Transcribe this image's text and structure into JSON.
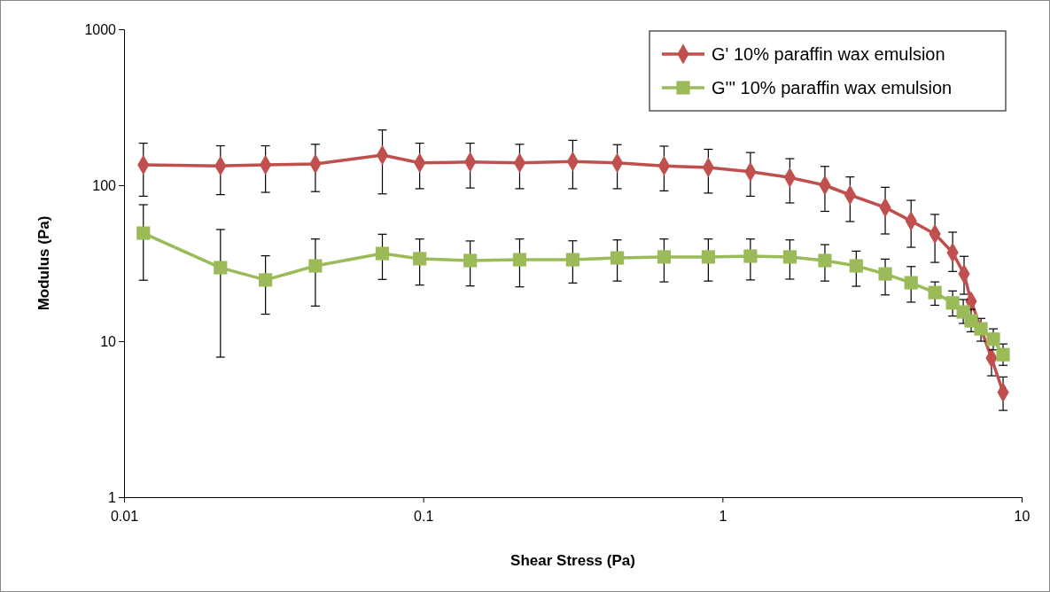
{
  "chart_data": {
    "type": "line",
    "xlabel": "Shear Stress (Pa)",
    "ylabel": "Modulus (Pa)",
    "log": "xy",
    "xlim": [
      0.01,
      10
    ],
    "ylim": [
      1,
      1000
    ],
    "xticks": [
      0.01,
      0.1,
      1,
      10
    ],
    "yticks": [
      1,
      10,
      100,
      1000
    ],
    "grid": false,
    "legend": "top right",
    "line_style": "solid",
    "series": [
      {
        "name": "G' 10% paraffin wax emulsion",
        "color": "#c0504d",
        "marker": "diamond",
        "x": [
          0.0116,
          0.021,
          0.0297,
          0.0436,
          0.073,
          0.0973,
          0.1435,
          0.21,
          0.316,
          0.445,
          0.638,
          0.897,
          1.24,
          1.68,
          2.2,
          2.67,
          3.5,
          4.27,
          5.13,
          5.88,
          6.42,
          6.78,
          7.93,
          8.67
        ],
        "values": [
          135,
          133,
          135,
          137,
          156,
          139,
          141,
          139,
          142,
          139,
          133,
          130,
          122,
          112,
          100,
          86.6,
          72,
          59,
          48.7,
          37,
          27,
          18,
          7.8,
          4.7
        ],
        "errors": [
          [
            85,
            186
          ],
          [
            87,
            179
          ],
          [
            90,
            179
          ],
          [
            91,
            183
          ],
          [
            88,
            226
          ],
          [
            95,
            186
          ],
          [
            96,
            186
          ],
          [
            95,
            183
          ],
          [
            95,
            194
          ],
          [
            95,
            182
          ],
          [
            92,
            178
          ],
          [
            89,
            170
          ],
          [
            85,
            162
          ],
          [
            77,
            148
          ],
          [
            68,
            132
          ],
          [
            58.5,
            113
          ],
          [
            48.7,
            97
          ],
          [
            40,
            80
          ],
          [
            32,
            65
          ],
          [
            28,
            50
          ],
          [
            20,
            35
          ],
          null,
          [
            6,
            7.8
          ],
          [
            3.6,
            5.9
          ]
        ]
      },
      {
        "name": "G''' 10% paraffin wax emulsion",
        "color": "#9bbb59",
        "marker": "square",
        "x": [
          0.0116,
          0.021,
          0.0297,
          0.0436,
          0.073,
          0.0973,
          0.1435,
          0.21,
          0.316,
          0.445,
          0.638,
          0.897,
          1.24,
          1.68,
          2.2,
          2.8,
          3.5,
          4.27,
          5.13,
          5.88,
          6.38,
          6.78,
          7.31,
          8.04,
          8.67
        ],
        "values": [
          49.3,
          29.6,
          24.7,
          30.4,
          36.5,
          33.8,
          32.9,
          33.3,
          33.3,
          34.2,
          34.7,
          34.7,
          35.1,
          34.7,
          32.9,
          30.4,
          27,
          23.7,
          20.5,
          17.6,
          15.4,
          13.5,
          12,
          10.3,
          8.2
        ],
        "errors": [
          [
            24.6,
            75
          ],
          [
            7.9,
            52
          ],
          [
            14.9,
            35.3
          ],
          [
            16.8,
            45.2
          ],
          [
            24.9,
            48.5
          ],
          [
            22.9,
            45.2
          ],
          [
            22.6,
            43.9
          ],
          [
            22.3,
            45.2
          ],
          [
            23.6,
            44
          ],
          [
            24.3,
            44.6
          ],
          [
            24,
            45.2
          ],
          [
            24.3,
            45.2
          ],
          [
            24.7,
            45.2
          ],
          [
            25,
            44.6
          ],
          [
            24.3,
            41.6
          ],
          [
            22.5,
            37.8
          ],
          [
            19.8,
            33.6
          ],
          [
            17.8,
            30.1
          ],
          [
            17,
            24
          ],
          [
            14.5,
            21
          ],
          [
            13,
            18.5
          ],
          [
            11.5,
            16
          ],
          [
            10,
            14
          ],
          [
            8.8,
            12
          ],
          [
            7,
            9.6
          ]
        ]
      }
    ]
  }
}
